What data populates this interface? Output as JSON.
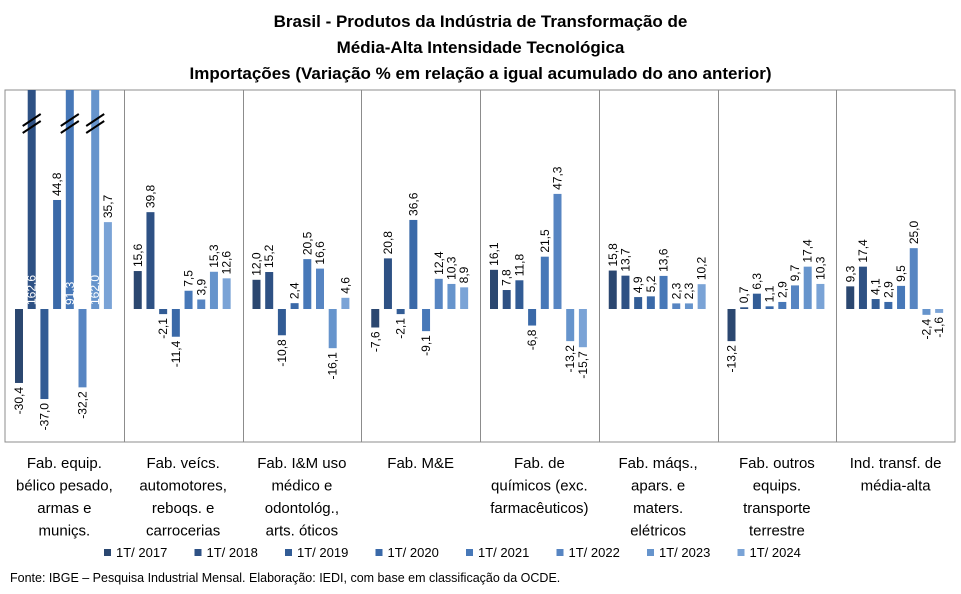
{
  "title_lines": [
    "Brasil - Produtos da Indústria de Transformação  de",
    "Média-Alta  Intensidade Tecnológica",
    "Importações  (Variação % em relação a igual acumulado  do ano anterior)"
  ],
  "source": "Fonte: IBGE – Pesquisa Industrial Mensal. Elaboração: IEDI, com base em classificação da OCDE.",
  "colors": [
    "#2b4770",
    "#2e5184",
    "#325c95",
    "#3a69a8",
    "#4778b8",
    "#5785c2",
    "#6694cc",
    "#7aa3d6"
  ],
  "chart_data": {
    "type": "bar",
    "title": "Brasil - Produtos da Indústria de Transformação de Média-Alta Intensidade Tecnológica — Importações (Variação % em relação a igual acumulado do ano anterior)",
    "categories": [
      "Fab. equip. bélico pesado, armas e muniçs.",
      "Fab. veícs. automotores, reboqs. e carrocerias",
      "Fab. I&M uso médico e odontológ., arts. óticos",
      "Fab. M&E",
      "Fab. de químicos (exc. farmacêuticos)",
      "Fab. máqs., apars. e maters. elétricos",
      "Fab. outros equips. transporte terrestre",
      "Ind. transf. de média-alta"
    ],
    "category_lines": [
      [
        "Fab. equip.",
        "bélico pesado,",
        "armas e",
        "muniçs."
      ],
      [
        "Fab. veícs.",
        "automotores,",
        "reboqs. e",
        "carrocerias"
      ],
      [
        "Fab. I&M uso",
        "médico e",
        "odontológ.,",
        "arts. óticos"
      ],
      [
        "Fab. M&E"
      ],
      [
        "Fab. de",
        "químicos (exc.",
        "farmacêuticos)"
      ],
      [
        "Fab. máqs.,",
        "apars. e",
        "maters.",
        "elétricos"
      ],
      [
        "Fab. outros",
        "equips.",
        "transporte",
        "terrestre"
      ],
      [
        "Ind. transf. de",
        "média-alta"
      ]
    ],
    "series": [
      {
        "name": "1T/ 2017",
        "values": [
          -30.4,
          15.6,
          12.0,
          -7.6,
          16.1,
          15.8,
          -13.2,
          9.3
        ],
        "labels": [
          "-30,4",
          "15,6",
          "12,0",
          "-7,6",
          "16,1",
          "15,8",
          "-13,2",
          "9,3"
        ]
      },
      {
        "name": "1T/ 2018",
        "values": [
          162.6,
          39.8,
          15.2,
          20.8,
          7.8,
          13.7,
          0.7,
          17.4
        ],
        "labels": [
          "162,6",
          "39,8",
          "15,2",
          "20,8",
          "7,8",
          "13,7",
          "0,7",
          "17,4"
        ]
      },
      {
        "name": "1T/ 2019",
        "values": [
          -37.0,
          -2.1,
          -10.8,
          -2.1,
          11.8,
          4.9,
          6.3,
          4.1
        ],
        "labels": [
          "-37,0",
          "-2,1",
          "-10,8",
          "-2,1",
          "11,8",
          "4,9",
          "6,3",
          "4,1"
        ]
      },
      {
        "name": "1T/ 2020",
        "values": [
          44.8,
          -11.4,
          2.4,
          36.6,
          -6.8,
          5.2,
          1.1,
          2.9
        ],
        "labels": [
          "44,8",
          "-11,4",
          "2,4",
          "36,6",
          "-6,8",
          "5,2",
          "1,1",
          "2,9"
        ]
      },
      {
        "name": "1T/ 2021",
        "values": [
          91.3,
          7.5,
          20.5,
          -9.1,
          21.5,
          13.6,
          2.9,
          9.5
        ],
        "labels": [
          "91,3",
          "7,5",
          "20,5",
          "-9,1",
          "21,5",
          "13,6",
          "2,9",
          "9,5"
        ]
      },
      {
        "name": "1T/ 2022",
        "values": [
          -32.2,
          3.9,
          16.6,
          12.4,
          47.3,
          2.3,
          9.7,
          25.0
        ],
        "labels": [
          "-32,2",
          "3,9",
          "16,6",
          "12,4",
          "47,3",
          "2,3",
          "9,7",
          "25,0"
        ]
      },
      {
        "name": "1T/ 2023",
        "values": [
          162.0,
          15.3,
          -16.1,
          10.3,
          -13.2,
          2.3,
          17.4,
          -2.4
        ],
        "labels": [
          "162,0",
          "15,3",
          "-16,1",
          "10,3",
          "-13,2",
          "2,3",
          "17,4",
          "-2,4"
        ]
      },
      {
        "name": "1T/ 2024",
        "values": [
          35.7,
          12.6,
          4.6,
          8.9,
          -15.7,
          10.2,
          10.3,
          -1.6
        ],
        "labels": [
          "35,7",
          "12,6",
          "4,6",
          "8,9",
          "-15,7",
          "10,2",
          "10,3",
          "-1,6"
        ]
      }
    ],
    "ylim": [
      -50,
      90
    ],
    "axis_break": "bars above the visible range are truncated with a break mark",
    "grid": false,
    "legend": "bottom"
  }
}
